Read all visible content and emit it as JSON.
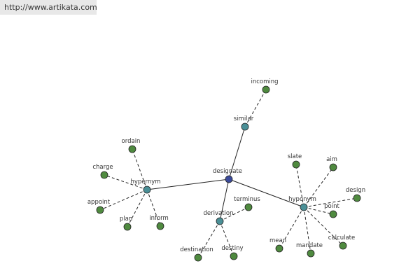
{
  "header": {
    "url": "http://www.artikata.com"
  },
  "nodes": [
    {
      "label": "designate"
    },
    {
      "label": "similar"
    },
    {
      "label": "incoming"
    },
    {
      "label": "hypernym"
    },
    {
      "label": "ordain"
    },
    {
      "label": "charge"
    },
    {
      "label": "appoint"
    },
    {
      "label": "plan"
    },
    {
      "label": "inform"
    },
    {
      "label": "derivation"
    },
    {
      "label": "terminus"
    },
    {
      "label": "destination"
    },
    {
      "label": "destiny"
    },
    {
      "label": "hyponym"
    },
    {
      "label": "slate"
    },
    {
      "label": "aim"
    },
    {
      "label": "design"
    },
    {
      "label": "point"
    },
    {
      "label": "calculate"
    },
    {
      "label": "mandate"
    },
    {
      "label": "mean"
    }
  ]
}
